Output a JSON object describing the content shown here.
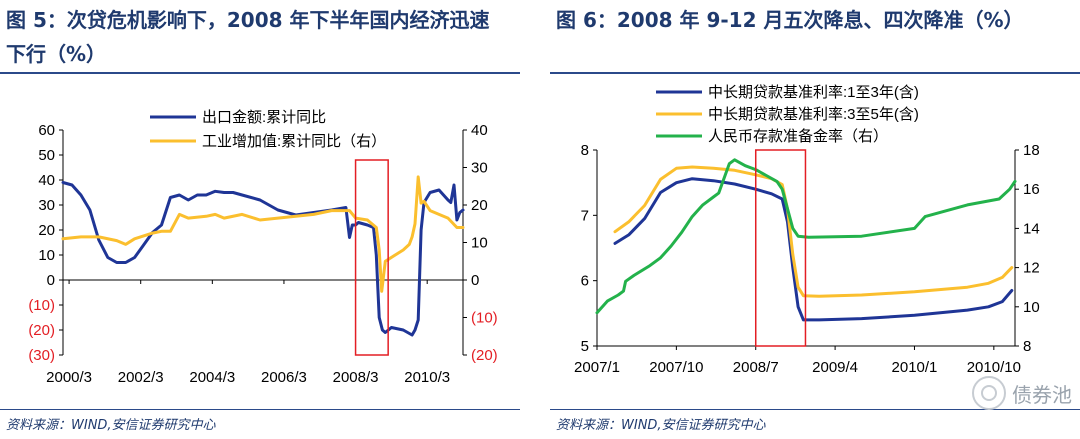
{
  "left": {
    "title_line1": "图 5：次贷危机影响下，2008 年下半年国内经济迅速",
    "title_line2": "下行（%）",
    "source": "资料来源：WIND,安信证券研究中心"
  },
  "right": {
    "title": "图 6：2008 年 9-12 月五次降息、四次降准（%）",
    "source": "资料来源：WIND,安信证券研究中心"
  },
  "watermark": {
    "text": "债券池"
  },
  "colors": {
    "navy": "#1f3596",
    "gold": "#fbbf2e",
    "green": "#23b24b",
    "red": "#e31e24",
    "title": "#1f3a6e"
  },
  "chart_data": [
    {
      "type": "line",
      "title": "图 5：次贷危机影响下，2008 年下半年国内经济迅速下行（%）",
      "x_range": [
        2000.0,
        2011.17
      ],
      "x_ticks": [
        2000.17,
        2002.17,
        2004.17,
        2006.17,
        2008.17,
        2010.17
      ],
      "x_tick_labels": [
        "2000/3",
        "2002/3",
        "2004/3",
        "2006/3",
        "2008/3",
        "2010/3"
      ],
      "y_left": {
        "range": [
          -30,
          60
        ],
        "ticks": [
          60,
          50,
          40,
          30,
          20,
          10,
          0,
          -10,
          -20,
          -30
        ],
        "tick_labels": [
          "60",
          "50",
          "40",
          "30",
          "20",
          "10",
          "0",
          "(10)",
          "(20)",
          "(30)"
        ]
      },
      "y_right": {
        "range": [
          -20,
          40
        ],
        "ticks": [
          40,
          30,
          20,
          10,
          0,
          -10,
          -20
        ],
        "tick_labels": [
          "40",
          "30",
          "20",
          "10",
          "0",
          "(10)",
          "(20)"
        ]
      },
      "highlight_box": {
        "x": [
          2008.17,
          2009.08
        ],
        "y": [
          -30,
          48
        ]
      },
      "series": [
        {
          "name": "出口金额:累计同比",
          "axis": "left",
          "color": "#1f3596",
          "x": [
            2000.0,
            2000.25,
            2000.5,
            2000.75,
            2001.0,
            2001.25,
            2001.5,
            2001.75,
            2002.0,
            2002.25,
            2002.5,
            2002.75,
            2003.0,
            2003.25,
            2003.5,
            2003.75,
            2004.0,
            2004.25,
            2004.5,
            2004.75,
            2005.0,
            2005.5,
            2006.0,
            2006.5,
            2007.0,
            2007.5,
            2007.9,
            2008.0,
            2008.08,
            2008.17,
            2008.25,
            2008.5,
            2008.67,
            2008.75,
            2008.83,
            2008.92,
            2009.0,
            2009.17,
            2009.5,
            2009.75,
            2009.83,
            2009.92,
            2010.0,
            2010.08,
            2010.25,
            2010.5,
            2010.75,
            2010.83,
            2010.92,
            2011.0,
            2011.08,
            2011.17
          ],
          "y": [
            39,
            38,
            34,
            28,
            16,
            9,
            7,
            7,
            9,
            14,
            19,
            22,
            33,
            34,
            32,
            34,
            34,
            35.5,
            35,
            35,
            34,
            32,
            28,
            26,
            27,
            28,
            29,
            17,
            22,
            22,
            23,
            22,
            21,
            10,
            -15,
            -20,
            -21,
            -19,
            -20,
            -22,
            -20,
            -16,
            20,
            31,
            35,
            36,
            32,
            31,
            38,
            24,
            27,
            28
          ]
        },
        {
          "name": "工业增加值:累计同比（右）",
          "axis": "right",
          "color": "#fbbf2e",
          "x": [
            2000.0,
            2000.5,
            2001.0,
            2001.5,
            2001.75,
            2002.0,
            2002.5,
            2002.75,
            2003.0,
            2003.25,
            2003.5,
            2004.0,
            2004.25,
            2004.5,
            2005.0,
            2005.5,
            2006.0,
            2006.5,
            2007.0,
            2007.5,
            2008.0,
            2008.17,
            2008.5,
            2008.75,
            2008.83,
            2008.9,
            2009.0,
            2009.25,
            2009.5,
            2009.67,
            2009.75,
            2009.83,
            2009.92,
            2010.0,
            2010.08,
            2010.25,
            2010.5,
            2010.75,
            2011.0,
            2011.17
          ],
          "y": [
            11,
            11.5,
            11.5,
            10.5,
            9.5,
            11,
            12.5,
            13,
            13,
            17.5,
            16.5,
            17,
            17.5,
            16.5,
            17.5,
            16,
            16.5,
            17,
            17.5,
            18.5,
            18.5,
            16.5,
            16,
            14,
            8,
            -3,
            5,
            6.5,
            8,
            9.5,
            11.5,
            15,
            27.5,
            20.5,
            21,
            18.5,
            17.5,
            16.5,
            14,
            14
          ]
        }
      ]
    },
    {
      "type": "line",
      "title": "图 6：2008 年 9-12 月五次降息、四次降准（%）",
      "x_range": [
        2007.0,
        2010.95
      ],
      "x_ticks": [
        2007.0,
        2007.75,
        2008.5,
        2009.25,
        2010.0,
        2010.75
      ],
      "x_tick_labels": [
        "2007/1",
        "2007/10",
        "2008/7",
        "2009/4",
        "2010/1",
        "2010/10"
      ],
      "y_left": {
        "range": [
          5,
          8
        ],
        "ticks": [
          8,
          7,
          6,
          5
        ],
        "tick_labels": [
          "8",
          "7",
          "6",
          "5"
        ]
      },
      "y_right": {
        "range": [
          8,
          18
        ],
        "ticks": [
          18,
          16,
          14,
          12,
          10,
          8
        ],
        "tick_labels": [
          "18",
          "16",
          "14",
          "12",
          "10",
          "8"
        ]
      },
      "highlight_box": {
        "x": [
          2008.5,
          2008.97
        ],
        "y": [
          5,
          8
        ]
      },
      "series": [
        {
          "name": "中长期贷款基准利率:1至3年(含)",
          "axis": "left",
          "color": "#1f3596",
          "x": [
            2007.17,
            2007.3,
            2007.45,
            2007.6,
            2007.75,
            2007.9,
            2008.1,
            2008.3,
            2008.5,
            2008.65,
            2008.75,
            2008.8,
            2008.85,
            2008.9,
            2008.95,
            2009.1,
            2009.5,
            2010.0,
            2010.5,
            2010.7,
            2010.83,
            2010.92
          ],
          "y": [
            6.57,
            6.7,
            6.95,
            7.35,
            7.5,
            7.56,
            7.53,
            7.48,
            7.4,
            7.33,
            7.25,
            6.9,
            6.2,
            5.6,
            5.4,
            5.4,
            5.42,
            5.47,
            5.55,
            5.6,
            5.68,
            5.85
          ]
        },
        {
          "name": "中长期贷款基准利率:3至5年(含)",
          "axis": "left",
          "color": "#fbbf2e",
          "x": [
            2007.17,
            2007.3,
            2007.45,
            2007.6,
            2007.75,
            2007.9,
            2008.1,
            2008.3,
            2008.5,
            2008.65,
            2008.75,
            2008.8,
            2008.85,
            2008.9,
            2008.95,
            2009.1,
            2009.5,
            2010.0,
            2010.5,
            2010.7,
            2010.83,
            2010.92
          ],
          "y": [
            6.75,
            6.9,
            7.15,
            7.55,
            7.72,
            7.74,
            7.72,
            7.69,
            7.62,
            7.56,
            7.47,
            7.1,
            6.4,
            5.9,
            5.77,
            5.76,
            5.78,
            5.83,
            5.9,
            5.96,
            6.05,
            6.2
          ]
        },
        {
          "name": "人民币存款准备金率（右）",
          "axis": "right",
          "color": "#23b24b",
          "x": [
            2007.0,
            2007.1,
            2007.2,
            2007.25,
            2007.27,
            2007.35,
            2007.5,
            2007.6,
            2007.7,
            2007.8,
            2007.9,
            2008.0,
            2008.1,
            2008.15,
            2008.25,
            2008.3,
            2008.4,
            2008.5,
            2008.6,
            2008.7,
            2008.75,
            2008.8,
            2008.85,
            2008.9,
            2009.0,
            2009.5,
            2010.0,
            2010.05,
            2010.1,
            2010.5,
            2010.8,
            2010.9,
            2010.95
          ],
          "y": [
            9.7,
            10.3,
            10.6,
            10.8,
            11.3,
            11.6,
            12.1,
            12.5,
            13.1,
            13.8,
            14.6,
            15.2,
            15.6,
            15.8,
            17.3,
            17.5,
            17.2,
            17.0,
            16.7,
            16.4,
            16.0,
            15.0,
            14.0,
            13.6,
            13.55,
            13.6,
            14.0,
            14.3,
            14.6,
            15.2,
            15.5,
            16.0,
            16.4
          ]
        }
      ]
    }
  ]
}
